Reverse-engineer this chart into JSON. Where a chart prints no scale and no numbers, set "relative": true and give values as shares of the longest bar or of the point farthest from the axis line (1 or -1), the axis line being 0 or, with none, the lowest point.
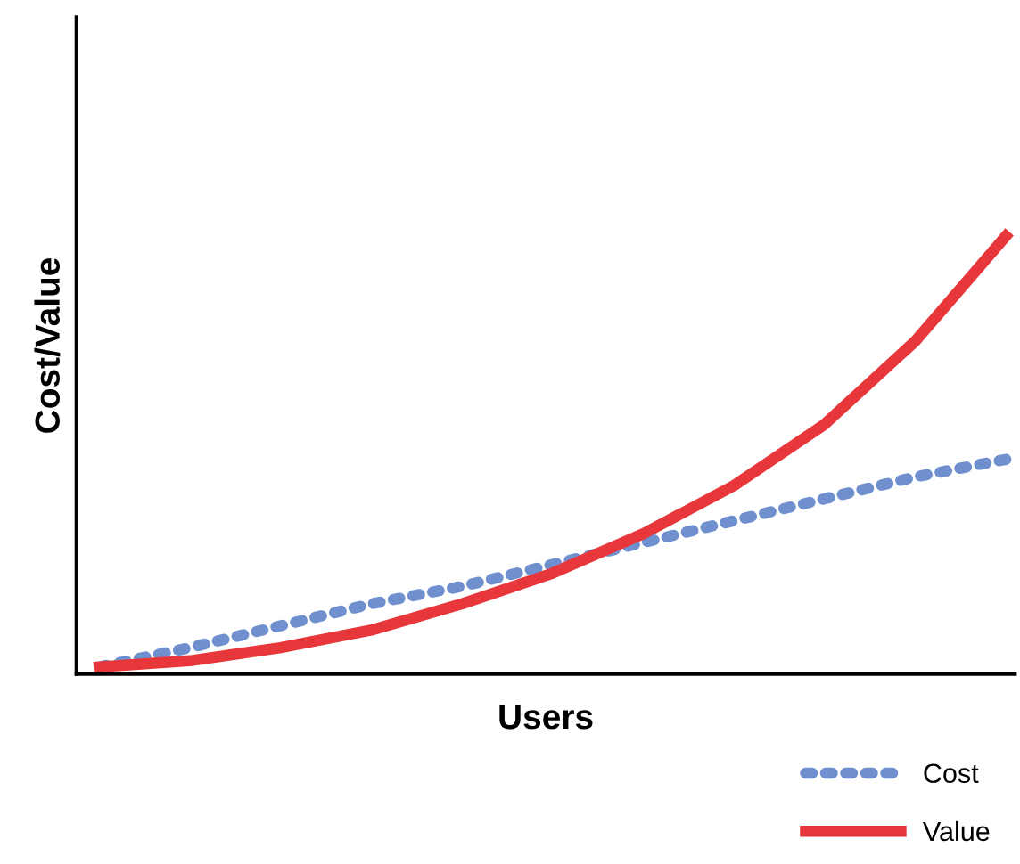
{
  "chart_data": {
    "type": "line",
    "xlabel": "Users",
    "ylabel": "Cost/Value",
    "relative": true,
    "legend": "bottom right",
    "categories": [
      null,
      null,
      null,
      null,
      null,
      null,
      null,
      null,
      null,
      null,
      null
    ],
    "series": [
      {
        "name": "Cost",
        "color": "#6f8fcf",
        "line_style": "dotted",
        "values": [
          0.016,
          0.06,
          0.11,
          0.16,
          0.2,
          0.25,
          0.3,
          0.35,
          0.4,
          0.45,
          0.49
        ]
      },
      {
        "name": "Value",
        "color": "#e8373a",
        "line_style": "solid",
        "values": [
          0.016,
          0.03,
          0.06,
          0.1,
          0.16,
          0.23,
          0.32,
          0.43,
          0.57,
          0.76,
          1.0
        ]
      }
    ]
  }
}
